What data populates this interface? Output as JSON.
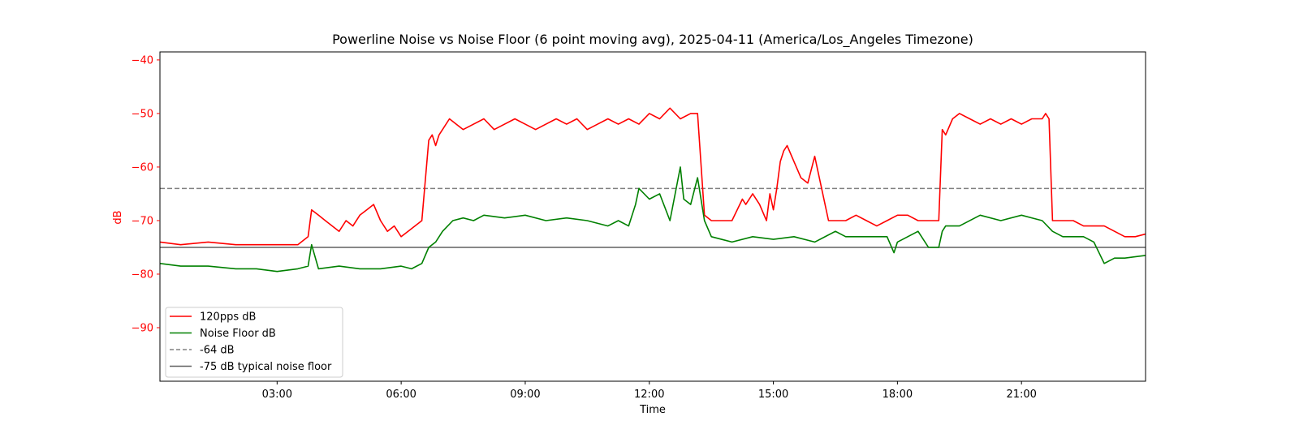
{
  "chart_data": {
    "type": "line",
    "title": "Powerline Noise vs Noise Floor (6 point moving avg), 2025-04-11 (America/Los_Angeles Timezone)",
    "xlabel": "Time",
    "ylabel": "dB",
    "ylabel_color": "#ff0000",
    "ytick_color": "#ff0000",
    "xlim": [
      "00:10",
      "24:00"
    ],
    "ylim": [
      -100,
      -38.5
    ],
    "x_ticks": [
      "03:00",
      "06:00",
      "09:00",
      "12:00",
      "15:00",
      "18:00",
      "21:00"
    ],
    "y_ticks": [
      -40,
      -50,
      -60,
      -70,
      -80,
      -90
    ],
    "grid": false,
    "legend_position": "lower-left",
    "series": [
      {
        "name": "120pps dB",
        "color": "#ff0000",
        "style": "solid",
        "x": [
          "00:10",
          "00:40",
          "01:20",
          "02:00",
          "02:30",
          "03:00",
          "03:30",
          "03:45",
          "03:50",
          "04:00",
          "04:10",
          "04:20",
          "04:30",
          "04:40",
          "04:50",
          "05:00",
          "05:10",
          "05:20",
          "05:30",
          "05:40",
          "05:50",
          "06:00",
          "06:10",
          "06:20",
          "06:30",
          "06:40",
          "06:45",
          "06:50",
          "06:55",
          "07:00",
          "07:10",
          "07:20",
          "07:30",
          "07:45",
          "08:00",
          "08:15",
          "08:30",
          "08:45",
          "09:00",
          "09:15",
          "09:30",
          "09:45",
          "10:00",
          "10:15",
          "10:30",
          "10:45",
          "11:00",
          "11:15",
          "11:30",
          "11:45",
          "12:00",
          "12:15",
          "12:30",
          "12:45",
          "13:00",
          "13:10",
          "13:20",
          "13:30",
          "13:45",
          "14:00",
          "14:15",
          "14:20",
          "14:30",
          "14:40",
          "14:50",
          "14:55",
          "15:00",
          "15:05",
          "15:10",
          "15:15",
          "15:20",
          "15:30",
          "15:40",
          "15:50",
          "16:00",
          "16:10",
          "16:20",
          "16:30",
          "16:45",
          "17:00",
          "17:15",
          "17:30",
          "17:45",
          "18:00",
          "18:15",
          "18:30",
          "18:45",
          "19:00",
          "19:05",
          "19:10",
          "19:20",
          "19:30",
          "19:45",
          "20:00",
          "20:15",
          "20:30",
          "20:45",
          "21:00",
          "21:15",
          "21:30",
          "21:35",
          "21:40",
          "21:45",
          "22:00",
          "22:15",
          "22:30",
          "22:45",
          "23:00",
          "23:15",
          "23:30",
          "23:45",
          "24:00"
        ],
        "values": [
          -74,
          -74.5,
          -74,
          -74.5,
          -74.5,
          -74.5,
          -74.5,
          -73,
          -68,
          -69,
          -70,
          -71,
          -72,
          -70,
          -71,
          -69,
          -68,
          -67,
          -70,
          -72,
          -71,
          -73,
          -72,
          -71,
          -70,
          -55,
          -54,
          -56,
          -54,
          -53,
          -51,
          -52,
          -53,
          -52,
          -51,
          -53,
          -52,
          -51,
          -52,
          -53,
          -52,
          -51,
          -52,
          -51,
          -53,
          -52,
          -51,
          -52,
          -51,
          -52,
          -50,
          -51,
          -49,
          -51,
          -50,
          -50,
          -69,
          -70,
          -70,
          -70,
          -66,
          -67,
          -65,
          -67,
          -70,
          -65,
          -68,
          -64,
          -59,
          -57,
          -56,
          -59,
          -62,
          -63,
          -58,
          -64,
          -70,
          -70,
          -70,
          -69,
          -70,
          -71,
          -70,
          -69,
          -69,
          -70,
          -70,
          -70,
          -53,
          -54,
          -51,
          -50,
          -51,
          -52,
          -51,
          -52,
          -51,
          -52,
          -51,
          -51,
          -50,
          -51,
          -70,
          -70,
          -70,
          -71,
          -71,
          -71,
          -72,
          -73,
          -73,
          -72.5
        ]
      },
      {
        "name": "Noise Floor dB",
        "color": "#008000",
        "style": "solid",
        "x": [
          "00:10",
          "00:40",
          "01:20",
          "02:00",
          "02:30",
          "03:00",
          "03:30",
          "03:45",
          "03:50",
          "04:00",
          "04:30",
          "05:00",
          "05:30",
          "06:00",
          "06:15",
          "06:30",
          "06:40",
          "06:50",
          "07:00",
          "07:15",
          "07:30",
          "07:45",
          "08:00",
          "08:30",
          "09:00",
          "09:30",
          "10:00",
          "10:30",
          "11:00",
          "11:15",
          "11:30",
          "11:40",
          "11:45",
          "12:00",
          "12:15",
          "12:30",
          "12:45",
          "12:50",
          "13:00",
          "13:10",
          "13:20",
          "13:30",
          "14:00",
          "14:30",
          "15:00",
          "15:30",
          "16:00",
          "16:30",
          "16:45",
          "17:00",
          "17:30",
          "17:45",
          "17:55",
          "18:00",
          "18:15",
          "18:30",
          "18:45",
          "19:00",
          "19:05",
          "19:10",
          "19:30",
          "20:00",
          "20:30",
          "21:00",
          "21:30",
          "21:45",
          "22:00",
          "22:30",
          "22:45",
          "23:00",
          "23:15",
          "23:30",
          "24:00"
        ],
        "values": [
          -78,
          -78.5,
          -78.5,
          -79,
          -79,
          -79.5,
          -79,
          -78.5,
          -74.5,
          -79,
          -78.5,
          -79,
          -79,
          -78.5,
          -79,
          -78,
          -75,
          -74,
          -72,
          -70,
          -69.5,
          -70,
          -69,
          -69.5,
          -69,
          -70,
          -69.5,
          -70,
          -71,
          -70,
          -71,
          -67,
          -64,
          -66,
          -65,
          -70,
          -60,
          -66,
          -67,
          -62,
          -70,
          -73,
          -74,
          -73,
          -73.5,
          -73,
          -74,
          -72,
          -73,
          -73,
          -73,
          -73,
          -76,
          -74,
          -73,
          -72,
          -75,
          -75,
          -72,
          -71,
          -71,
          -69,
          -70,
          -69,
          -70,
          -72,
          -73,
          -73,
          -74,
          -78,
          -77,
          -77,
          -76.5
        ]
      }
    ],
    "reference_lines": [
      {
        "name": "-64 dB",
        "y": -64,
        "color": "#808080",
        "style": "dashed"
      },
      {
        "name": "-75 dB typical noise floor",
        "y": -75,
        "color": "#606060",
        "style": "solid"
      }
    ]
  }
}
